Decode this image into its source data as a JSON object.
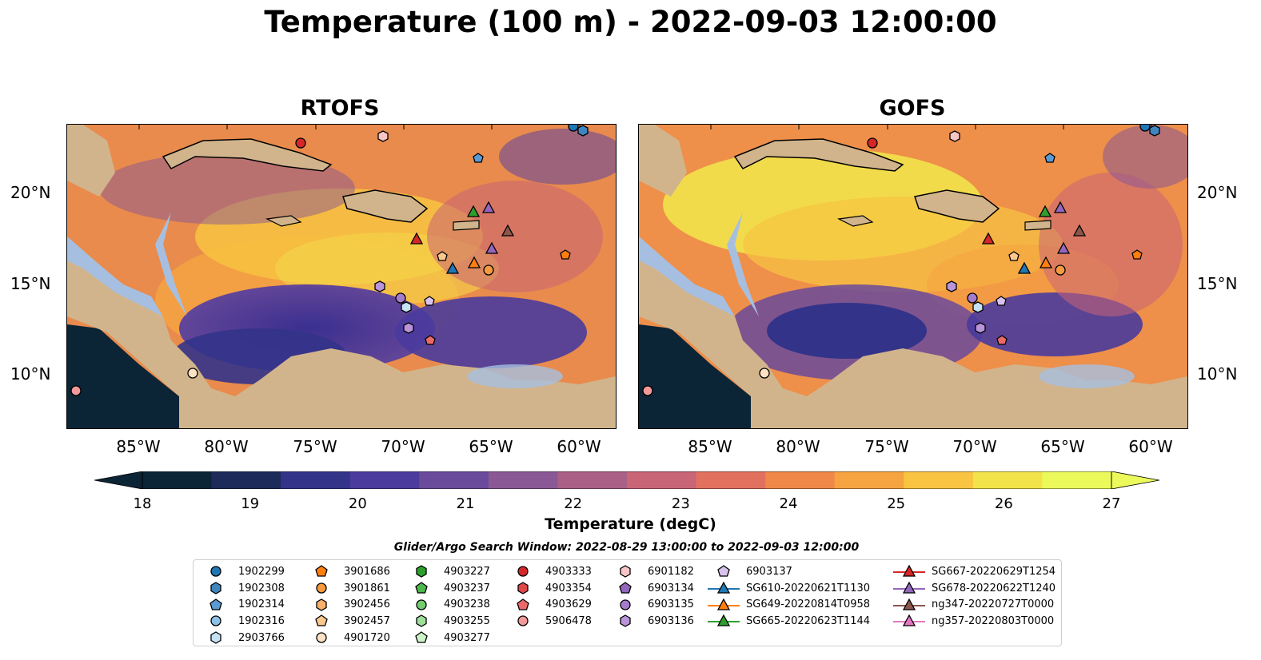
{
  "title": "Temperature (100 m) - 2022-09-03 12:00:00",
  "panels": [
    {
      "name": "RTOFS"
    },
    {
      "name": "GOFS"
    }
  ],
  "lat_ticks": [
    "20°N",
    "15°N",
    "10°N"
  ],
  "lon_ticks": [
    "85°W",
    "80°W",
    "75°W",
    "70°W",
    "65°W",
    "60°W"
  ],
  "colorbar": {
    "label": "Temperature (degC)",
    "ticks": [
      "18",
      "19",
      "20",
      "21",
      "22",
      "23",
      "24",
      "25",
      "26",
      "27"
    ],
    "min": 18,
    "max": 27,
    "colors": [
      "#0b2436",
      "#1c2b5a",
      "#33338a",
      "#4a3b9c",
      "#6a4a9a",
      "#8a5894",
      "#a95f86",
      "#c86577",
      "#e2705e",
      "#f0884a",
      "#f6a441",
      "#f8c441",
      "#f2e34a",
      "#ecf95a"
    ]
  },
  "legend": {
    "title": "Glider/Argo Search Window: 2022-08-29 13:00:00 to 2022-09-03 12:00:00",
    "columns": [
      [
        {
          "label": "1902299",
          "marker": "circle",
          "color": "#1f77b4"
        },
        {
          "label": "1902308",
          "marker": "hexagon",
          "color": "#3f86c0"
        },
        {
          "label": "1902314",
          "marker": "pentagon",
          "color": "#5b9bd5"
        },
        {
          "label": "1902316",
          "marker": "circle",
          "color": "#8ec1e8"
        },
        {
          "label": "2903766",
          "marker": "hexagon",
          "color": "#c6e2f5"
        }
      ],
      [
        {
          "label": "3901686",
          "marker": "pentagon",
          "color": "#ff7f0e"
        },
        {
          "label": "3901861",
          "marker": "circle",
          "color": "#f59a40"
        },
        {
          "label": "3902456",
          "marker": "hexagon",
          "color": "#f8b06a"
        },
        {
          "label": "3902457",
          "marker": "pentagon",
          "color": "#fbc890"
        },
        {
          "label": "4901720",
          "marker": "circle",
          "color": "#fde3c4"
        }
      ],
      [
        {
          "label": "4903227",
          "marker": "hexagon",
          "color": "#2ca02c"
        },
        {
          "label": "4903237",
          "marker": "pentagon",
          "color": "#4cb84c"
        },
        {
          "label": "4903238",
          "marker": "circle",
          "color": "#74cc6f"
        },
        {
          "label": "4903255",
          "marker": "hexagon",
          "color": "#9ee09a"
        },
        {
          "label": "4903277",
          "marker": "pentagon",
          "color": "#cdf3c8"
        }
      ],
      [
        {
          "label": "4903333",
          "marker": "circle",
          "color": "#d62728"
        },
        {
          "label": "4903354",
          "marker": "hexagon",
          "color": "#e04848"
        },
        {
          "label": "4903629",
          "marker": "pentagon",
          "color": "#ea6a6a"
        },
        {
          "label": "5906478",
          "marker": "circle",
          "color": "#f29a9a"
        }
      ],
      [
        {
          "label": "6901182",
          "marker": "hexagon",
          "color": "#f9c6c6"
        },
        {
          "label": "6903134",
          "marker": "pentagon",
          "color": "#9467bd"
        },
        {
          "label": "6903135",
          "marker": "circle",
          "color": "#a57ccb"
        },
        {
          "label": "6903136",
          "marker": "hexagon",
          "color": "#b994da"
        }
      ],
      [
        {
          "label": "6903137",
          "marker": "pentagon",
          "color": "#d9c3ee"
        },
        {
          "label": "SG610-20220621T1130",
          "marker": "triangle",
          "color": "#1f77b4"
        },
        {
          "label": "SG649-20220814T0958",
          "marker": "triangle",
          "color": "#ff7f0e"
        },
        {
          "label": "SG665-20220623T1144",
          "marker": "triangle",
          "color": "#2ca02c"
        }
      ],
      [
        {
          "label": "SG667-20220629T1254",
          "marker": "triangle",
          "color": "#d62728"
        },
        {
          "label": "SG678-20220622T1240",
          "marker": "triangle",
          "color": "#9467bd"
        },
        {
          "label": "ng347-20220727T0000",
          "marker": "triangle",
          "color": "#8c564b"
        },
        {
          "label": "ng357-20220803T0000",
          "marker": "triangle",
          "color": "#e377c2"
        }
      ]
    ]
  },
  "colors": {
    "land": "#d2b48c",
    "shelf": "#a6bfe0"
  }
}
